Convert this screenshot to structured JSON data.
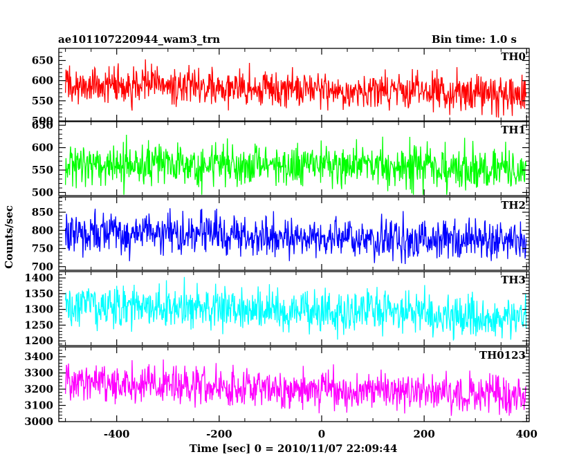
{
  "chart_data": {
    "type": "line",
    "title_left": "ae101107220944_wam3_trn",
    "title_right": "Bin time: 1.0 s",
    "xlabel": "Time [sec] 0 = 2010/11/07 22:09:44",
    "ylabel": "Counts/sec",
    "xlim": [
      -513,
      405
    ],
    "xticks": [
      -400,
      -200,
      0,
      200,
      400
    ],
    "x_range": [
      -500,
      399
    ],
    "bin_time": 1.0,
    "panels": [
      {
        "name": "TH0",
        "color": "#ff0000",
        "ylim": [
          500,
          680
        ],
        "yticks": [
          500,
          550,
          600,
          650
        ],
        "level_start": 590,
        "level_end": 568,
        "noise": 24,
        "min": 500,
        "max": 680
      },
      {
        "name": "TH1",
        "color": "#00ff00",
        "ylim": [
          493,
          658
        ],
        "yticks": [
          500,
          550,
          600,
          650
        ],
        "level_start": 563,
        "level_end": 552,
        "noise": 24,
        "min": 495,
        "max": 657
      },
      {
        "name": "TH2",
        "color": "#0000ff",
        "ylim": [
          690,
          892
        ],
        "yticks": [
          700,
          750,
          800,
          850
        ],
        "level_start": 795,
        "level_end": 768,
        "noise": 28,
        "min": 692,
        "max": 890
      },
      {
        "name": "TH3",
        "color": "#00ffff",
        "ylim": [
          1185,
          1420
        ],
        "yticks": [
          1200,
          1250,
          1300,
          1350,
          1400
        ],
        "level_start": 1315,
        "level_end": 1278,
        "noise": 35,
        "min": 1188,
        "max": 1410
      },
      {
        "name": "TH0123",
        "color": "#ff00ff",
        "ylim": [
          3000,
          3460
        ],
        "yticks": [
          3000,
          3100,
          3200,
          3300,
          3400
        ],
        "level_start": 3250,
        "level_end": 3155,
        "noise": 60,
        "min": 3000,
        "max": 3455
      }
    ]
  }
}
